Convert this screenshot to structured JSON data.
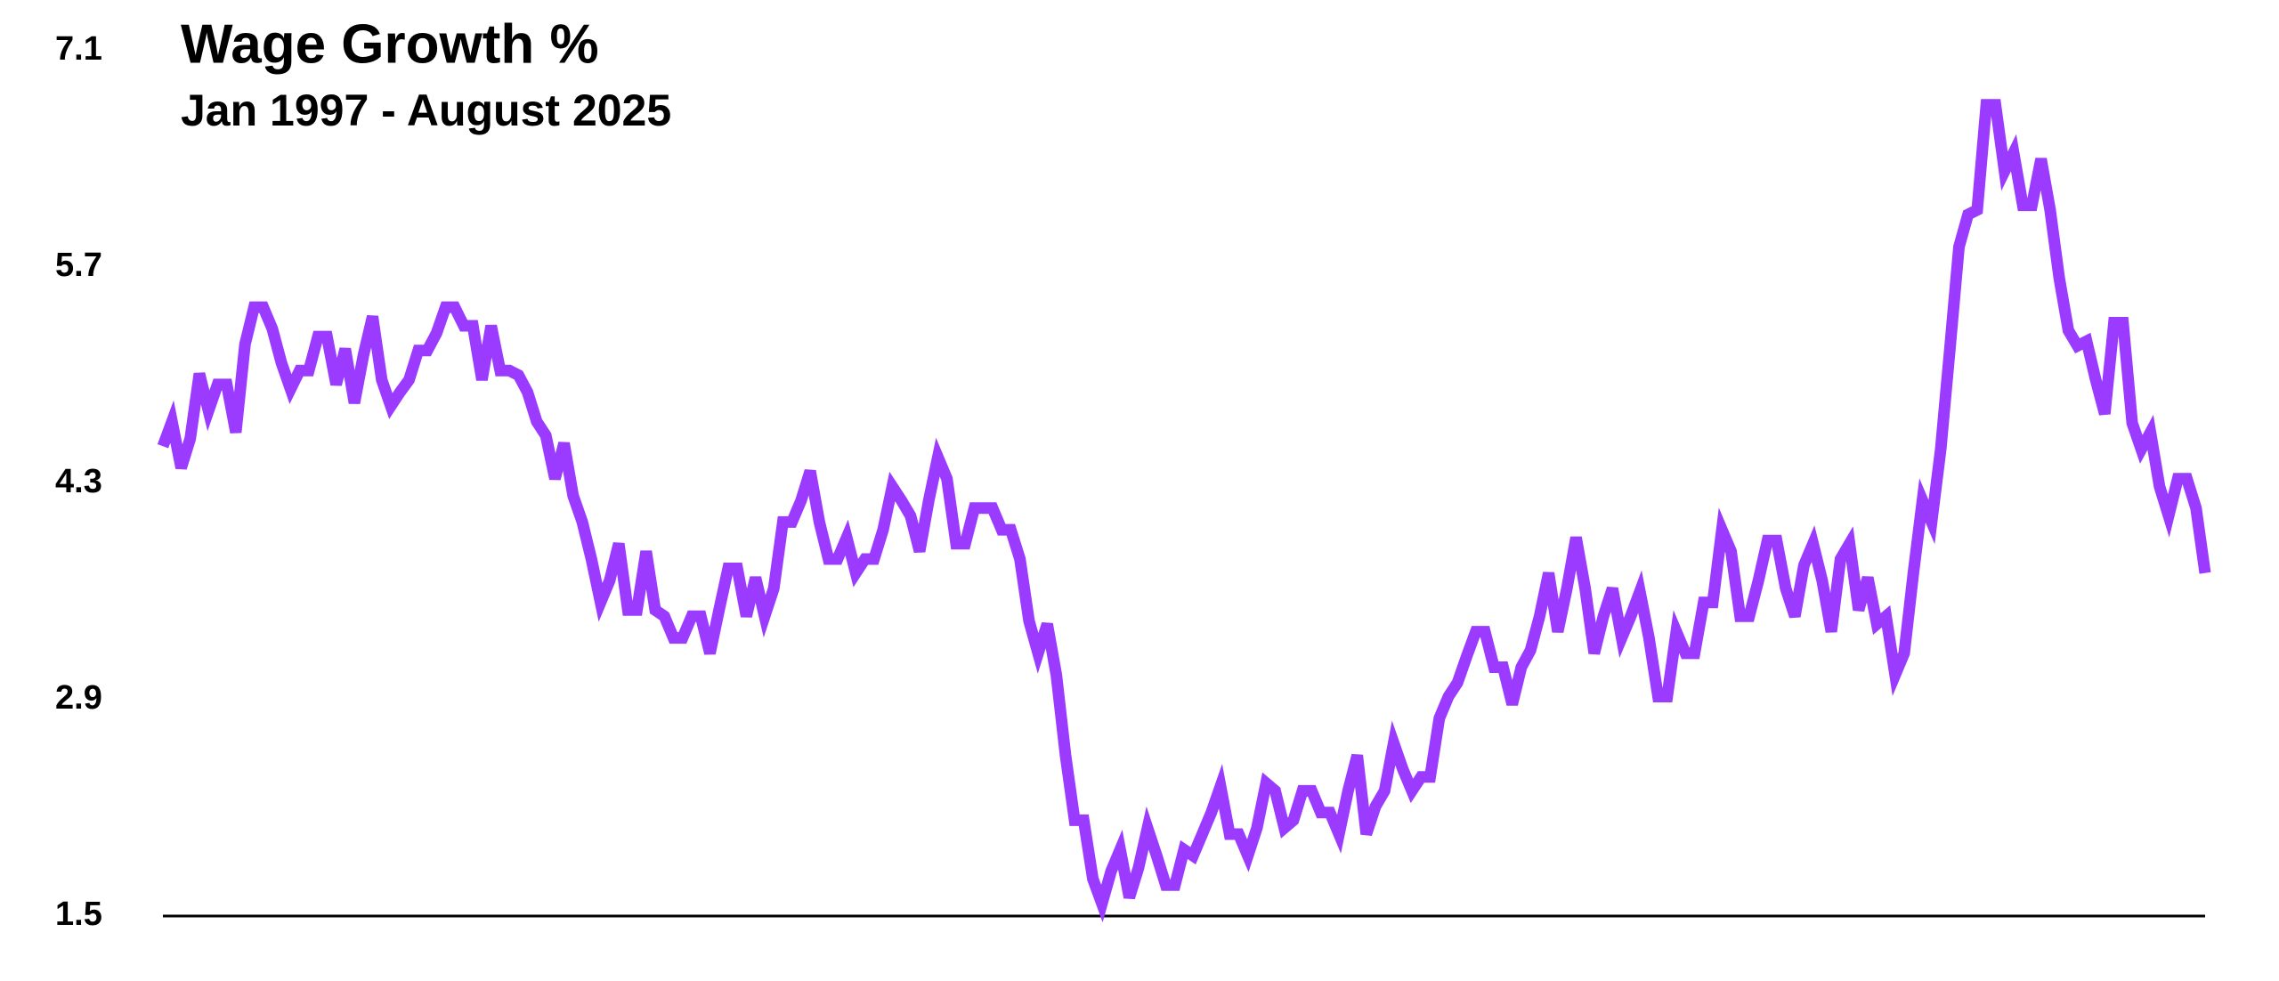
{
  "chart_data": {
    "type": "line",
    "title": "Wage Growth %",
    "subtitle": "Jan 1997 - August 2025",
    "series": [
      {
        "color": "#9b3bff",
        "values": [
          4.54,
          4.7,
          4.4,
          4.59,
          5.01,
          4.77,
          4.94,
          4.94,
          4.63,
          5.2,
          5.44,
          5.44,
          5.3,
          5.08,
          4.91,
          5.03,
          5.03,
          5.25,
          5.25,
          4.94,
          5.17,
          4.82,
          5.13,
          5.38,
          4.97,
          4.8,
          4.89,
          4.97,
          5.16,
          5.16,
          5.27,
          5.44,
          5.44,
          5.32,
          5.32,
          4.97,
          5.32,
          5.03,
          5.03,
          5.0,
          4.89,
          4.7,
          4.61,
          4.33,
          4.56,
          4.22,
          4.05,
          3.81,
          3.53,
          3.67,
          3.91,
          3.48,
          3.48,
          3.86,
          3.48,
          3.44,
          3.3,
          3.3,
          3.44,
          3.44,
          3.2,
          3.48,
          3.75,
          3.75,
          3.44,
          3.69,
          3.44,
          3.62,
          4.05,
          4.05,
          4.19,
          4.38,
          4.05,
          3.81,
          3.81,
          3.95,
          3.72,
          3.81,
          3.81,
          4.0,
          4.28,
          4.19,
          4.09,
          3.86,
          4.19,
          4.47,
          4.33,
          3.91,
          3.91,
          4.14,
          4.14,
          4.14,
          4.0,
          4.0,
          3.81,
          3.41,
          3.2,
          3.39,
          3.06,
          2.54,
          2.12,
          2.12,
          1.74,
          1.58,
          1.79,
          1.93,
          1.62,
          1.81,
          2.07,
          1.89,
          1.7,
          1.7,
          1.93,
          1.89,
          2.03,
          2.17,
          2.34,
          2.03,
          2.03,
          1.89,
          2.07,
          2.36,
          2.31,
          2.07,
          2.12,
          2.31,
          2.31,
          2.17,
          2.17,
          2.03,
          2.31,
          2.54,
          2.03,
          2.21,
          2.31,
          2.62,
          2.45,
          2.31,
          2.4,
          2.4,
          2.78,
          2.92,
          3.01,
          3.18,
          3.34,
          3.34,
          3.11,
          3.11,
          2.87,
          3.11,
          3.22,
          3.44,
          3.72,
          3.34,
          3.62,
          3.95,
          3.62,
          3.2,
          3.44,
          3.62,
          3.3,
          3.44,
          3.6,
          3.3,
          2.92,
          2.92,
          3.34,
          3.2,
          3.2,
          3.53,
          3.53,
          4.0,
          3.86,
          3.44,
          3.44,
          3.67,
          3.93,
          3.93,
          3.62,
          3.44,
          3.77,
          3.91,
          3.67,
          3.34,
          3.81,
          3.91,
          3.48,
          3.69,
          3.39,
          3.44,
          3.06,
          3.2,
          3.72,
          4.19,
          4.05,
          4.52,
          5.17,
          5.83,
          6.04,
          6.07,
          6.75,
          6.75,
          6.32,
          6.44,
          6.1,
          6.1,
          6.4,
          6.07,
          5.63,
          5.29,
          5.19,
          5.22,
          4.97,
          4.75,
          5.34,
          5.34,
          4.69,
          4.52,
          4.63,
          4.28,
          4.09,
          4.33,
          4.33,
          4.14,
          3.72
        ]
      }
    ],
    "ylim": [
      1.5,
      7.1
    ],
    "yticks": [
      {
        "value": 1.5,
        "label": "1.5"
      },
      {
        "value": 2.9,
        "label": "2.9"
      },
      {
        "value": 4.3,
        "label": "4.3"
      },
      {
        "value": 5.7,
        "label": "5.7"
      },
      {
        "value": 7.1,
        "label": "7.1"
      }
    ],
    "grid": false
  }
}
